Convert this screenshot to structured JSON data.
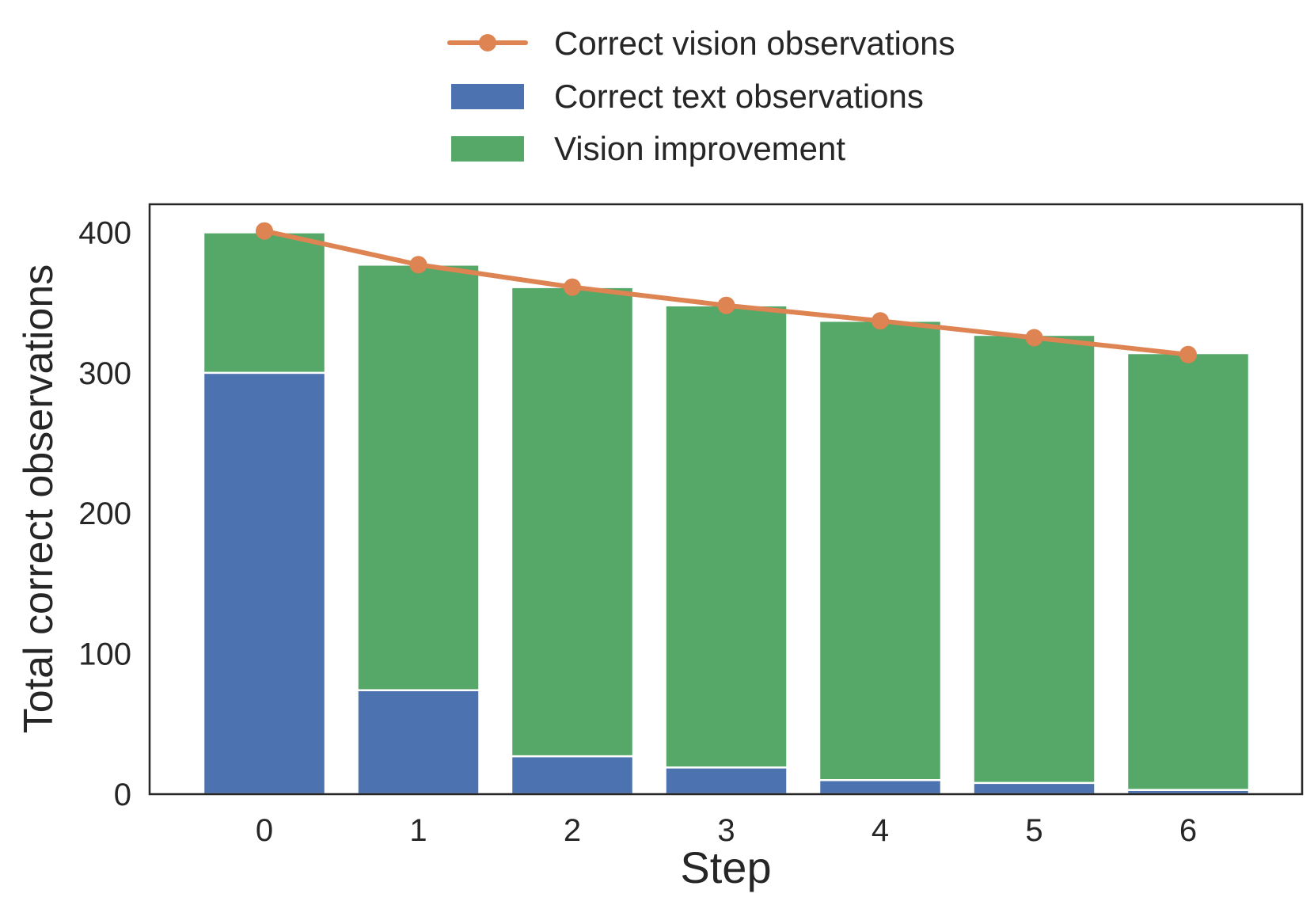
{
  "chart_data": {
    "type": "bar",
    "stacked": true,
    "title": "",
    "xlabel": "Step",
    "ylabel": "Total correct observations",
    "categories": [
      "0",
      "1",
      "2",
      "3",
      "4",
      "5",
      "6"
    ],
    "ylim": [
      0,
      420
    ],
    "yticks": [
      0,
      100,
      200,
      300,
      400
    ],
    "grid": false,
    "legend_position": "top-center, above plot",
    "series": [
      {
        "name": "Correct text observations",
        "kind": "bar",
        "color": "#4c72b0",
        "values": [
          300,
          74,
          27,
          19,
          10,
          8,
          3
        ]
      },
      {
        "name": "Vision improvement",
        "kind": "bar",
        "color": "#55a868",
        "values": [
          100,
          303,
          334,
          329,
          327,
          319,
          311
        ]
      },
      {
        "name": "Correct vision observations",
        "kind": "line",
        "color": "#dd8452",
        "values": [
          401,
          377,
          361,
          348,
          337,
          325,
          313
        ]
      }
    ]
  }
}
